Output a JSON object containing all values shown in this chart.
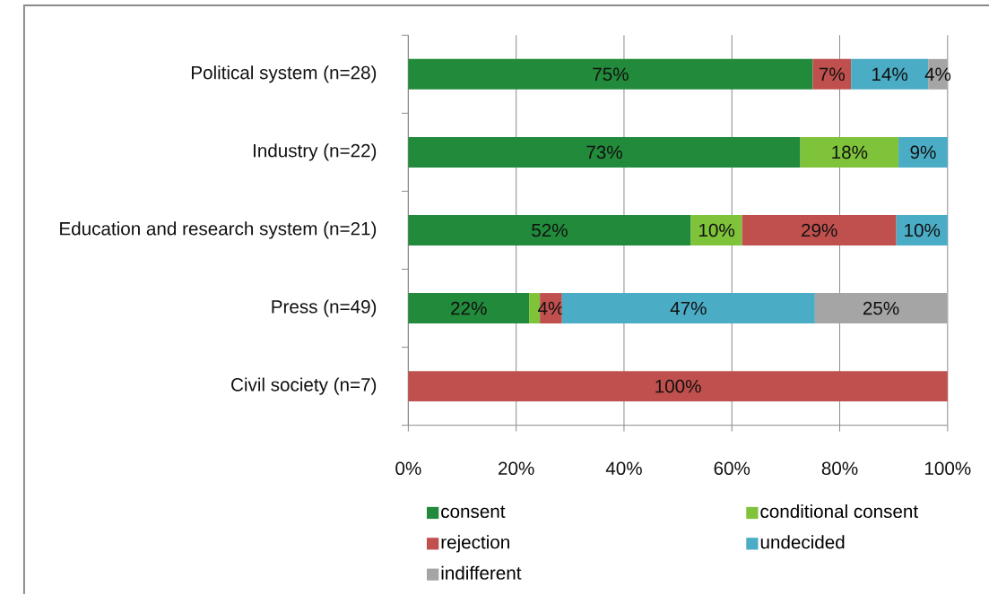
{
  "chart_data": {
    "type": "bar",
    "orientation": "horizontal",
    "stacked": true,
    "categories": [
      "Political system (n=28)",
      "Industry (n=22)",
      "Education and research system (n=21)",
      "Press (n=49)",
      "Civil society (n=7)"
    ],
    "series": [
      {
        "name": "consent",
        "color": "#228a3b",
        "values": [
          75,
          72.7,
          52.4,
          22.4,
          0
        ],
        "value_labels": [
          "75%",
          "73%",
          "52%",
          "22%",
          null
        ]
      },
      {
        "name": "conditional consent",
        "color": "#7fc33a",
        "values": [
          0,
          18.2,
          9.5,
          2.0,
          0
        ],
        "value_labels": [
          null,
          "18%",
          "10%",
          null,
          null
        ]
      },
      {
        "name": "rejection",
        "color": "#c0504d",
        "values": [
          7.1,
          0,
          28.6,
          4.1,
          100
        ],
        "value_labels": [
          "7%",
          null,
          "29%",
          "4%",
          "100%"
        ]
      },
      {
        "name": "undecided",
        "color": "#4bacc6",
        "values": [
          14.3,
          9.1,
          9.5,
          46.9,
          0
        ],
        "value_labels": [
          "14%",
          "9%",
          "10%",
          "47%",
          null
        ]
      },
      {
        "name": "indifferent",
        "color": "#a5a5a5",
        "values": [
          3.6,
          0,
          0,
          24.5,
          0
        ],
        "value_labels": [
          "4%",
          null,
          null,
          "25%",
          null
        ]
      }
    ],
    "xlim": [
      0,
      100
    ],
    "xticks": [
      {
        "value": 0,
        "label": "0%"
      },
      {
        "value": 20,
        "label": "20%"
      },
      {
        "value": 40,
        "label": "40%"
      },
      {
        "value": 60,
        "label": "60%"
      },
      {
        "value": 80,
        "label": "80%"
      },
      {
        "value": 100,
        "label": "100%"
      }
    ],
    "grid": "x",
    "legend": "bottom"
  }
}
